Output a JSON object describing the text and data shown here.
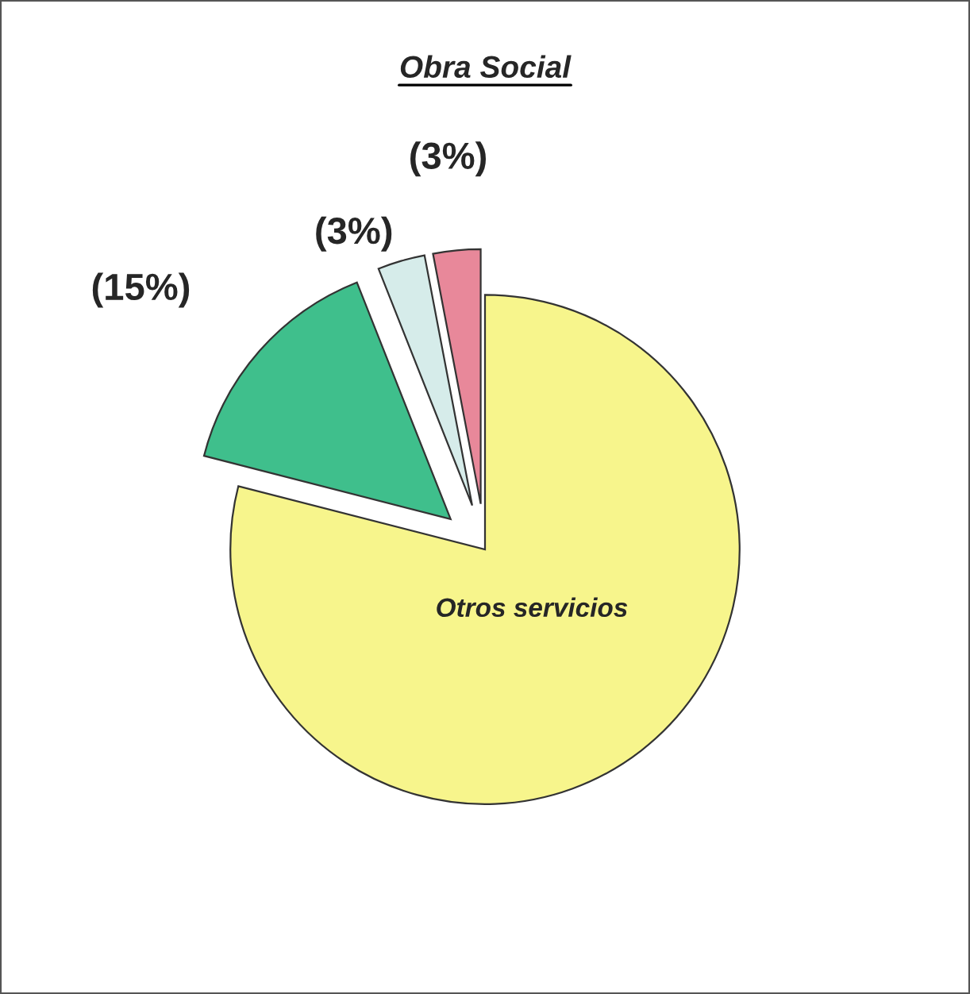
{
  "chart_data": {
    "type": "pie",
    "title": "Obra Social",
    "categories": [
      null,
      null,
      null,
      "Otros servicios"
    ],
    "values": [
      3,
      3,
      15,
      79
    ],
    "value_labels": [
      "(3%)",
      "(3%)",
      "(15%)",
      null
    ],
    "colors": [
      "#e8889a",
      "#d6ecea",
      "#3fbf8c",
      "#f7f58c"
    ]
  }
}
